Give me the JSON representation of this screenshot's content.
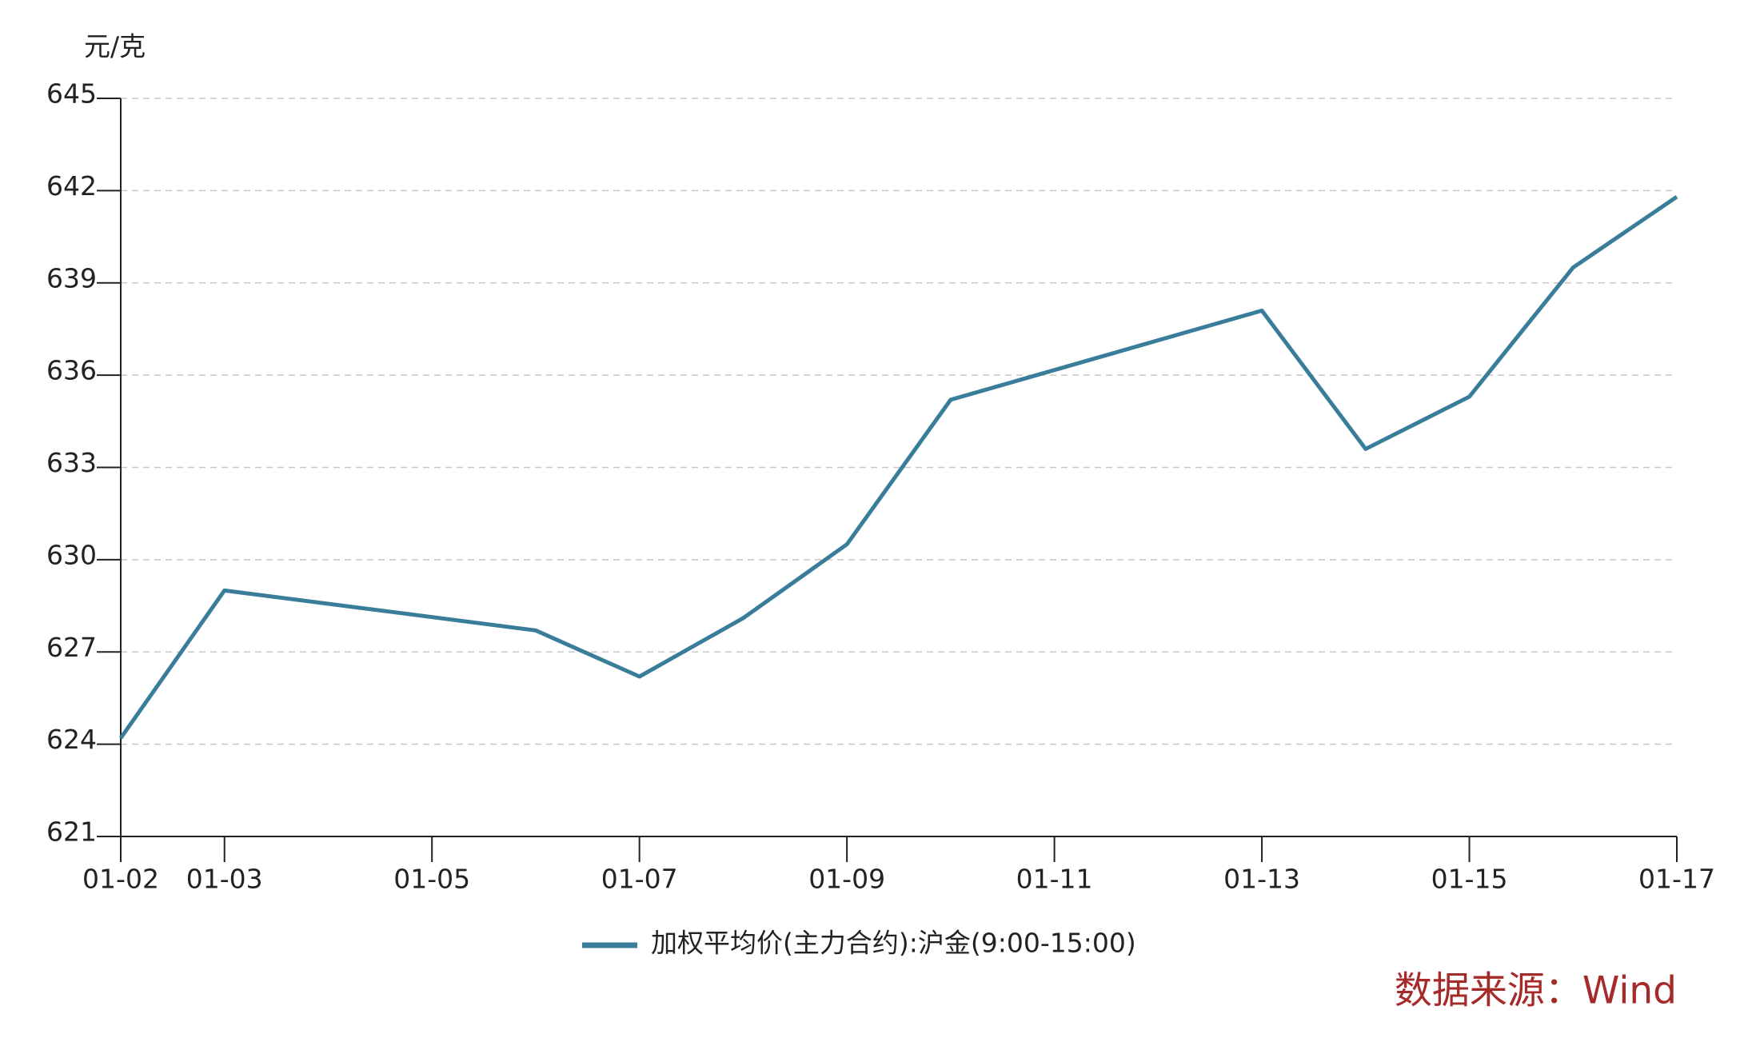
{
  "chart_data": {
    "type": "line",
    "y_unit": "元/克",
    "source": "数据来源：Wind",
    "x": [
      "01-02",
      "01-03",
      "01-06",
      "01-07",
      "01-08",
      "01-09",
      "01-10",
      "01-13",
      "01-14",
      "01-15",
      "01-16",
      "01-17"
    ],
    "series": [
      {
        "name": "加权平均价(主力合约):沪金(9:00-15:00)",
        "color": "#3a7d9b",
        "values": [
          624.2,
          629.0,
          627.7,
          626.2,
          628.1,
          630.5,
          635.2,
          638.1,
          633.6,
          635.3,
          639.5,
          641.8
        ]
      }
    ],
    "xlim": [
      "01-02",
      "01-17"
    ],
    "xticks": [
      "01-02",
      "01-03",
      "01-05",
      "01-07",
      "01-09",
      "01-11",
      "01-13",
      "01-15",
      "01-17"
    ],
    "ylim": [
      621,
      645
    ],
    "yticks": [
      621,
      624,
      627,
      630,
      633,
      636,
      639,
      642,
      645
    ],
    "grid": true,
    "legend": "bottom"
  }
}
